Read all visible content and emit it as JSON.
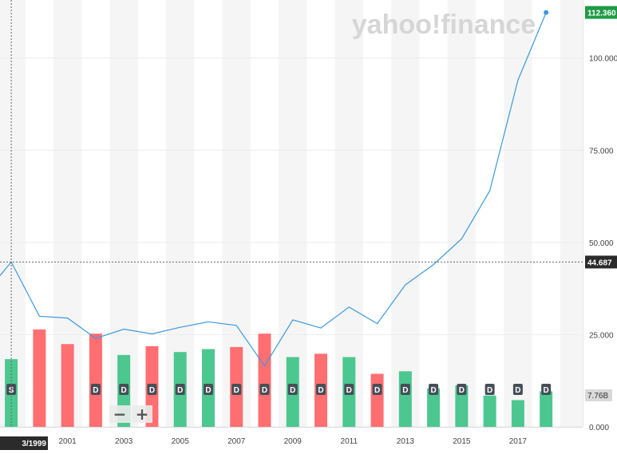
{
  "watermark": "yahoo!finance",
  "chart_data": {
    "type": "line",
    "x_labels": [
      "2001",
      "2003",
      "2005",
      "2007",
      "2009",
      "2011",
      "2013",
      "2015",
      "2017"
    ],
    "x_range": [
      1998.6,
      2019.3
    ],
    "y_ticks": [
      "0.000",
      "25.000",
      "50.000",
      "75.000",
      "100.000"
    ],
    "ylim": [
      0,
      114
    ],
    "price_series": {
      "color": "#3b99dc",
      "x": [
        1998.6,
        1999,
        2000,
        2001,
        2002,
        2003,
        2004,
        2005,
        2006,
        2007,
        2008,
        2009,
        2010,
        2011,
        2012,
        2013,
        2014,
        2015,
        2016,
        2017,
        2018
      ],
      "values": [
        41.0,
        44.687,
        30.0,
        29.5,
        24.0,
        26.5,
        25.2,
        27.0,
        28.5,
        27.5,
        16.5,
        29.0,
        26.8,
        32.5,
        28.0,
        38.5,
        44.0,
        51.0,
        64.0,
        94.0,
        112.36
      ]
    },
    "volume_series": {
      "x": [
        1999,
        2000,
        2001,
        2002,
        2003,
        2004,
        2005,
        2006,
        2007,
        2008,
        2009,
        2010,
        2011,
        2012,
        2013,
        2014,
        2015,
        2016,
        2017,
        2018
      ],
      "values": [
        16.2,
        23.3,
        19.8,
        22.3,
        17.2,
        19.3,
        17.9,
        18.6,
        19.1,
        22.3,
        16.7,
        17.5,
        16.7,
        12.7,
        13.3,
        9.2,
        9.9,
        7.5,
        6.4,
        8.5
      ],
      "direction": [
        "up",
        "down",
        "down",
        "down",
        "up",
        "down",
        "up",
        "up",
        "down",
        "down",
        "up",
        "down",
        "up",
        "down",
        "up",
        "up",
        "up",
        "up",
        "up",
        "up"
      ],
      "up_color": "#4cc790",
      "down_color": "#ff6f72",
      "max": 50
    },
    "event_markers": [
      {
        "x": 1999,
        "label": "S"
      },
      {
        "x": 2002,
        "label": "D"
      },
      {
        "x": 2003,
        "label": "D"
      },
      {
        "x": 2004,
        "label": "D"
      },
      {
        "x": 2005,
        "label": "D"
      },
      {
        "x": 2006,
        "label": "D"
      },
      {
        "x": 2007,
        "label": "D"
      },
      {
        "x": 2008,
        "label": "D"
      },
      {
        "x": 2009,
        "label": "D"
      },
      {
        "x": 2010,
        "label": "D"
      },
      {
        "x": 2011,
        "label": "D"
      },
      {
        "x": 2012,
        "label": "D"
      },
      {
        "x": 2013,
        "label": "D"
      },
      {
        "x": 2014,
        "label": "D"
      },
      {
        "x": 2015,
        "label": "D"
      },
      {
        "x": 2016,
        "label": "D"
      },
      {
        "x": 2017,
        "label": "D"
      },
      {
        "x": 2018,
        "label": "D"
      }
    ],
    "crosshair": {
      "x": 1999,
      "y": 44.687,
      "date_label": "3/1999",
      "price_label": "44.687"
    },
    "last_price": {
      "value": 112.36,
      "label": "112.360"
    },
    "volume_label": "7.76B",
    "zoom": {
      "minus": "−",
      "plus": "+"
    }
  }
}
